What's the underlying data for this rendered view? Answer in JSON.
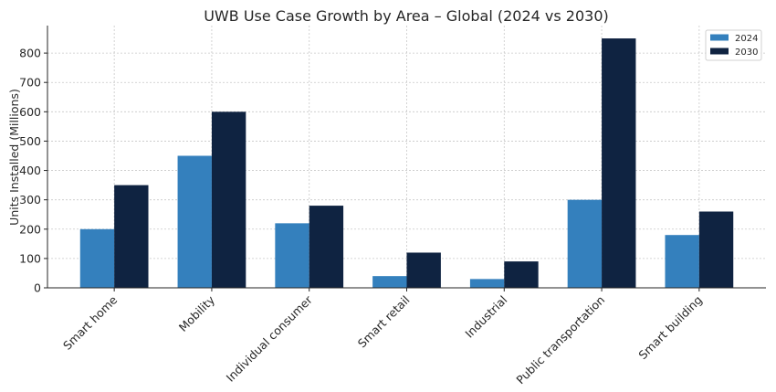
{
  "chart_data": {
    "type": "bar",
    "title": "UWB Use Case Growth by Area – Global (2024 vs 2030)",
    "xlabel": "",
    "ylabel": "Units Installed (Millions)",
    "categories": [
      "Smart home",
      "Mobility",
      "Individual consumer",
      "Smart retail",
      "Industrial",
      "Public transportation",
      "Smart building"
    ],
    "series": [
      {
        "name": "2024",
        "color": "#3480bd",
        "values": [
          200,
          450,
          220,
          40,
          30,
          300,
          180
        ]
      },
      {
        "name": "2030",
        "color": "#0f2341",
        "values": [
          350,
          600,
          280,
          120,
          90,
          850,
          260
        ]
      }
    ],
    "yticks": [
      0,
      100,
      200,
      300,
      400,
      500,
      600,
      700,
      800
    ],
    "ylim": [
      0,
      892.5
    ],
    "grid": true,
    "legend": "top-right",
    "xtick_rotation": 45
  }
}
